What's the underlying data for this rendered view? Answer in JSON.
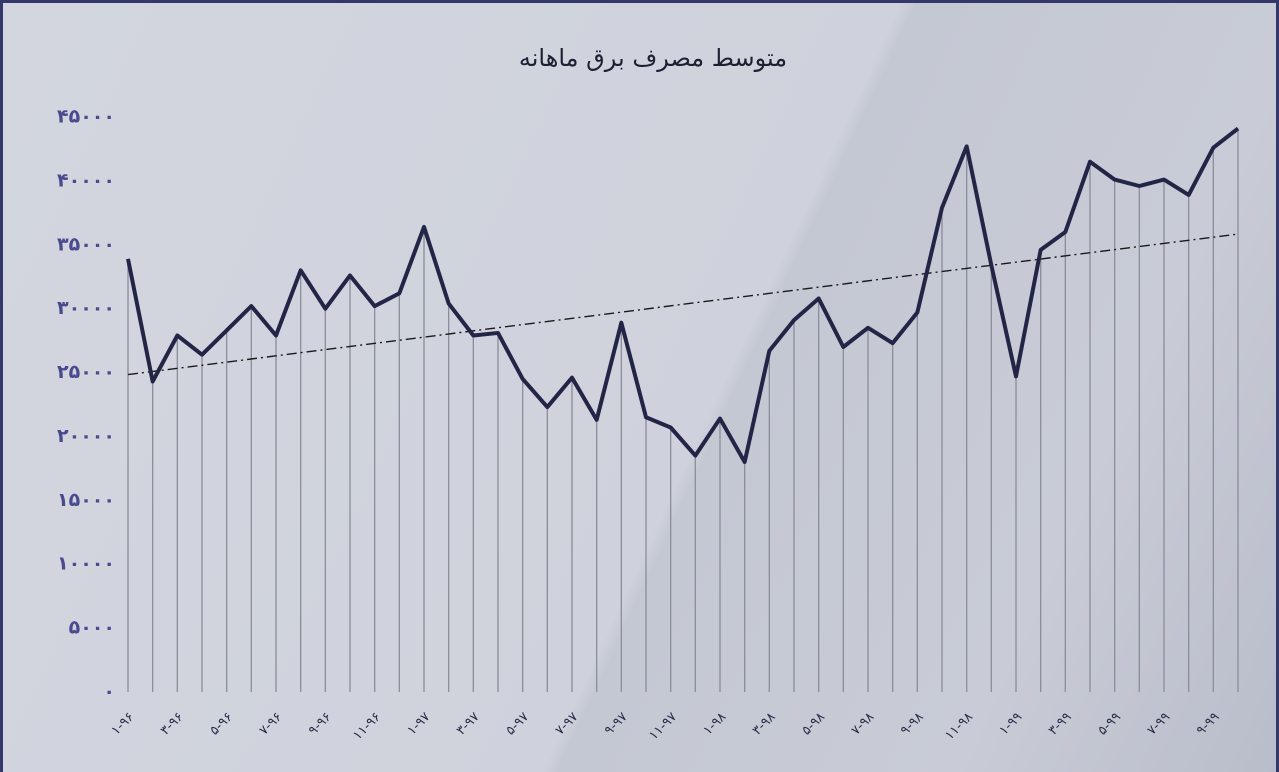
{
  "chart_data": {
    "type": "line",
    "title": "متوسط مصرف برق ماهانه",
    "categories": [
      "۱-۹۶",
      null,
      "۳-۹۶",
      null,
      "۵-۹۶",
      null,
      "۷-۹۶",
      null,
      "۹-۹۶",
      null,
      "۱۱-۹۶",
      null,
      "۱-۹۷",
      null,
      "۳-۹۷",
      null,
      "۵-۹۷",
      null,
      "۷-۹۷",
      null,
      "۹-۹۷",
      null,
      "۱۱-۹۷",
      null,
      "۱-۹۸",
      null,
      "۳-۹۸",
      null,
      "۵-۹۸",
      null,
      "۷-۹۸",
      null,
      "۹-۹۸",
      null,
      "۱۱-۹۸",
      null,
      "۱-۹۹",
      null,
      "۳-۹۹",
      null,
      "۵-۹۹",
      null,
      "۷-۹۹",
      null,
      "۹-۹۹",
      null
    ],
    "values": [
      33900,
      24300,
      27900,
      26400,
      28300,
      30200,
      27900,
      33000,
      30000,
      32600,
      30200,
      31200,
      36400,
      30400,
      27900,
      28100,
      24500,
      22300,
      24600,
      21300,
      28900,
      21500,
      20700,
      18500,
      21400,
      18000,
      26700,
      29100,
      30800,
      27000,
      28500,
      27300,
      29700,
      37900,
      42700,
      33400,
      24700,
      34600,
      36000,
      41500,
      40100,
      39600,
      40100,
      38900,
      42600,
      44100
    ],
    "color": "#232546",
    "drop_line_color": "#8a8d9a",
    "trendline": true,
    "ylim": [
      0,
      45000
    ],
    "yticks": [
      {
        "value": 0,
        "label": "۰"
      },
      {
        "value": 5000,
        "label": "۵۰۰۰"
      },
      {
        "value": 10000,
        "label": "۱۰۰۰۰"
      },
      {
        "value": 15000,
        "label": "۱۵۰۰۰"
      },
      {
        "value": 20000,
        "label": "۲۰۰۰۰"
      },
      {
        "value": 25000,
        "label": "۲۵۰۰۰"
      },
      {
        "value": 30000,
        "label": "۳۰۰۰۰"
      },
      {
        "value": 35000,
        "label": "۳۵۰۰۰"
      },
      {
        "value": 40000,
        "label": "۴۰۰۰۰"
      },
      {
        "value": 45000,
        "label": "۴۵۰۰۰"
      }
    ]
  }
}
